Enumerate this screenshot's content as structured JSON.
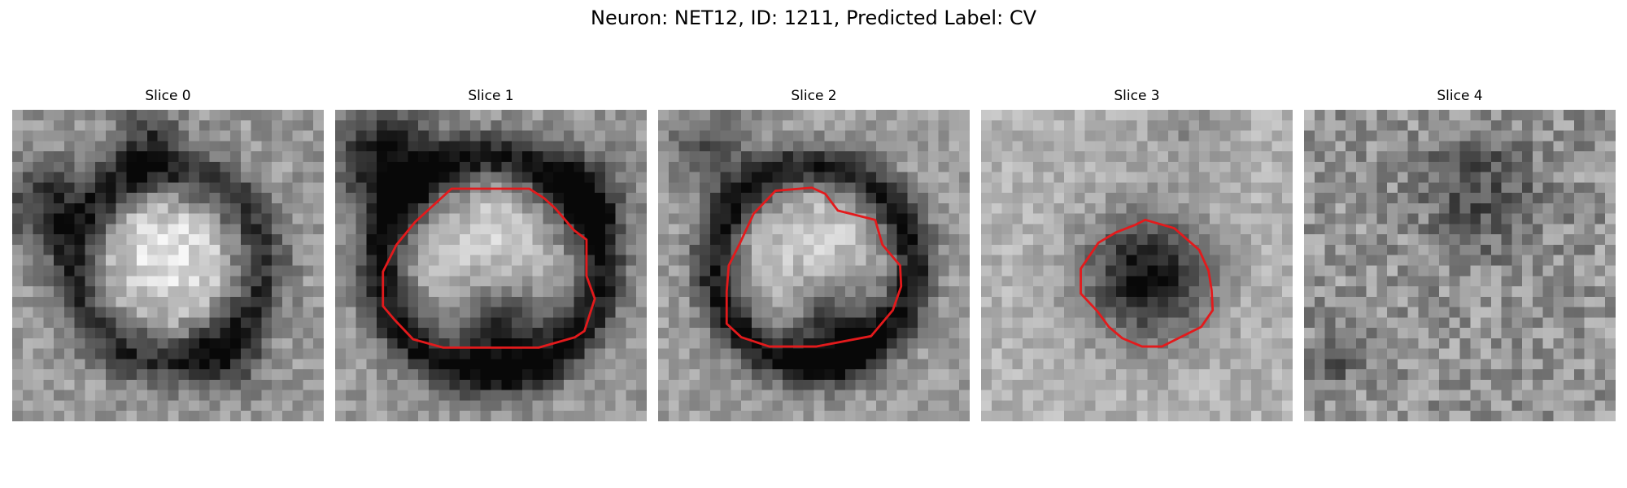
{
  "figure": {
    "title": "Neuron: NET12, ID: 1211, Predicted Label: CV"
  },
  "panels": [
    {
      "title": "Slice 0",
      "has_contour": false
    },
    {
      "title": "Slice 1",
      "has_contour": true
    },
    {
      "title": "Slice 2",
      "has_contour": true
    },
    {
      "title": "Slice 3",
      "has_contour": true
    },
    {
      "title": "Slice 4",
      "has_contour": false
    }
  ],
  "colors": {
    "contour": "#e31a1c",
    "background": "#ffffff"
  }
}
